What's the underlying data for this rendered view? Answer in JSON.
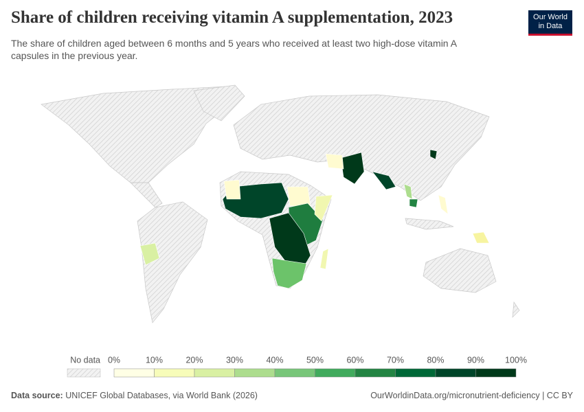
{
  "title": "Share of children receiving vitamin A supplementation, 2023",
  "subtitle": "The share of children aged between 6 months and 5 years who received at least two high-dose vitamin A capsules in the previous year.",
  "logo": {
    "line1": "Our World",
    "line2": "in Data"
  },
  "legend": {
    "no_data": "No data",
    "labels": [
      "0%",
      "10%",
      "20%",
      "30%",
      "40%",
      "50%",
      "60%",
      "70%",
      "80%",
      "90%",
      "100%"
    ],
    "colors": [
      "#ffffe5",
      "#f7fcb9",
      "#d9f0a3",
      "#addd8e",
      "#78c679",
      "#41ab5d",
      "#238443",
      "#006837",
      "#004529",
      "#00391a"
    ]
  },
  "footer": {
    "source_label": "Data source:",
    "source": "UNICEF Global Databases, via World Bank (2026)",
    "url": "OurWorldinData.org/micronutrient-deficiency | CC BY"
  }
}
